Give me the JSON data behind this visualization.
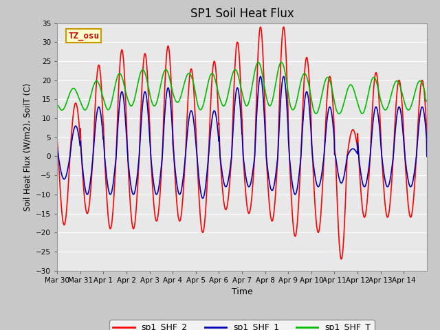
{
  "title": "SP1 Soil Heat Flux",
  "xlabel": "Time",
  "ylabel": "Soil Heat Flux (W/m2), SoilT (C)",
  "ylim": [
    -30,
    35
  ],
  "yticks": [
    -30,
    -25,
    -20,
    -15,
    -10,
    -5,
    0,
    5,
    10,
    15,
    20,
    25,
    30,
    35
  ],
  "xtick_labels": [
    "Mar 30",
    "Mar 31",
    "Apr 1",
    "Apr 2",
    "Apr 3",
    "Apr 4",
    "Apr 5",
    "Apr 6",
    "Apr 7",
    "Apr 8",
    "Apr 9",
    "Apr 10",
    "Apr 11",
    "Apr 12",
    "Apr 13",
    "Apr 14"
  ],
  "color_shf2": "#ff0000",
  "color_shf1": "#0000bb",
  "color_shft": "#00bb00",
  "legend_entries": [
    "sp1_SHF_2",
    "sp1_SHF_1",
    "sp1_SHF_T"
  ],
  "annotation_text": "TZ_osu",
  "annotation_color": "#cc0000",
  "annotation_bg": "#ffffcc",
  "annotation_border": "#cc9900",
  "linewidth": 1.2,
  "n_days": 16,
  "title_fontsize": 12
}
